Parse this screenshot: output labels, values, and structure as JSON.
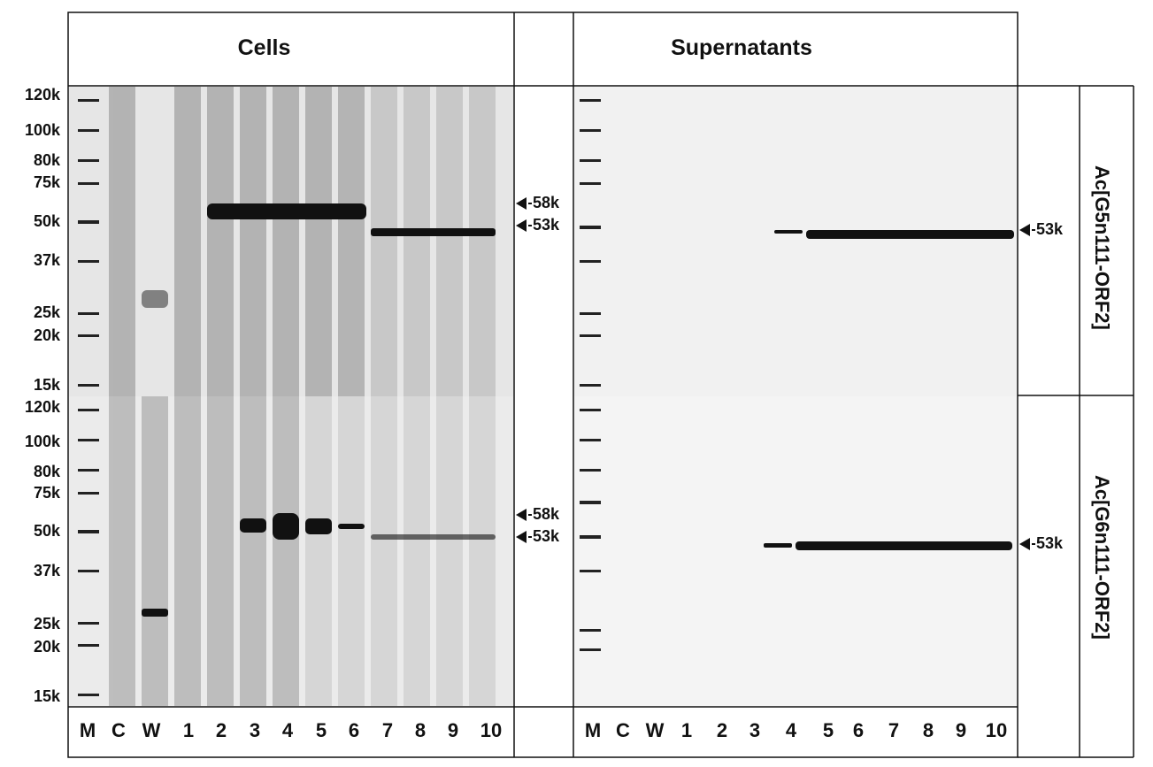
{
  "headers": {
    "cells": "Cells",
    "supernatants": "Supernatants"
  },
  "markers": [
    "120k",
    "100k",
    "80k",
    "75k",
    "50k",
    "37k",
    "25k",
    "20k",
    "15k"
  ],
  "lanes_cells": [
    "M",
    "C",
    "W",
    "1",
    "2",
    "3",
    "4",
    "5",
    "6",
    "7",
    "8",
    "9",
    "10"
  ],
  "lanes_supernatants": [
    "M",
    "C",
    "W",
    "1",
    "2",
    "3",
    "4",
    "5",
    "6",
    "7",
    "8",
    "9",
    "10"
  ],
  "band_labels": {
    "top_cells_upper": "58k",
    "top_cells_lower": "53k",
    "top_sup": "53k",
    "bottom_cells_upper": "58k",
    "bottom_cells_lower": "53k",
    "bottom_sup": "53k"
  },
  "row_labels": {
    "top": "Ac[G5n111-ORF2]",
    "bottom": "Ac[G6n111-ORF2]"
  }
}
